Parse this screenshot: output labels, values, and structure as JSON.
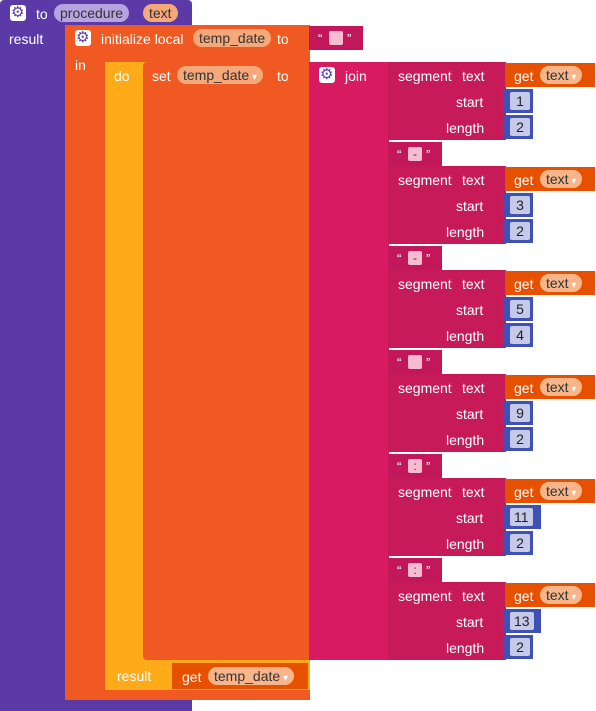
{
  "procedure": {
    "to_label": "to",
    "name": "procedure",
    "param": "text",
    "result_label": "result"
  },
  "local": {
    "init_label": "initialize local",
    "var_name": "temp_date",
    "to_label": "to",
    "initial_value": ""
  },
  "inner": {
    "in_label": "in",
    "do_label": "do",
    "set_label": "set",
    "set_var": "temp_date",
    "set_to_label": "to",
    "join_label": "join",
    "result_label": "result",
    "get_label": "get",
    "get_var": "temp_date"
  },
  "segment_labels": {
    "segment": "segment",
    "text": "text",
    "start": "start",
    "length": "length",
    "get": "get",
    "get_var": "text"
  },
  "segments": [
    {
      "start": "1",
      "length": "2"
    },
    {
      "start": "3",
      "length": "2"
    },
    {
      "start": "5",
      "length": "4"
    },
    {
      "start": "9",
      "length": "2"
    },
    {
      "start": "11",
      "length": "2"
    },
    {
      "start": "13",
      "length": "2"
    }
  ],
  "separators": [
    "-",
    "-",
    "",
    ":",
    ":"
  ]
}
